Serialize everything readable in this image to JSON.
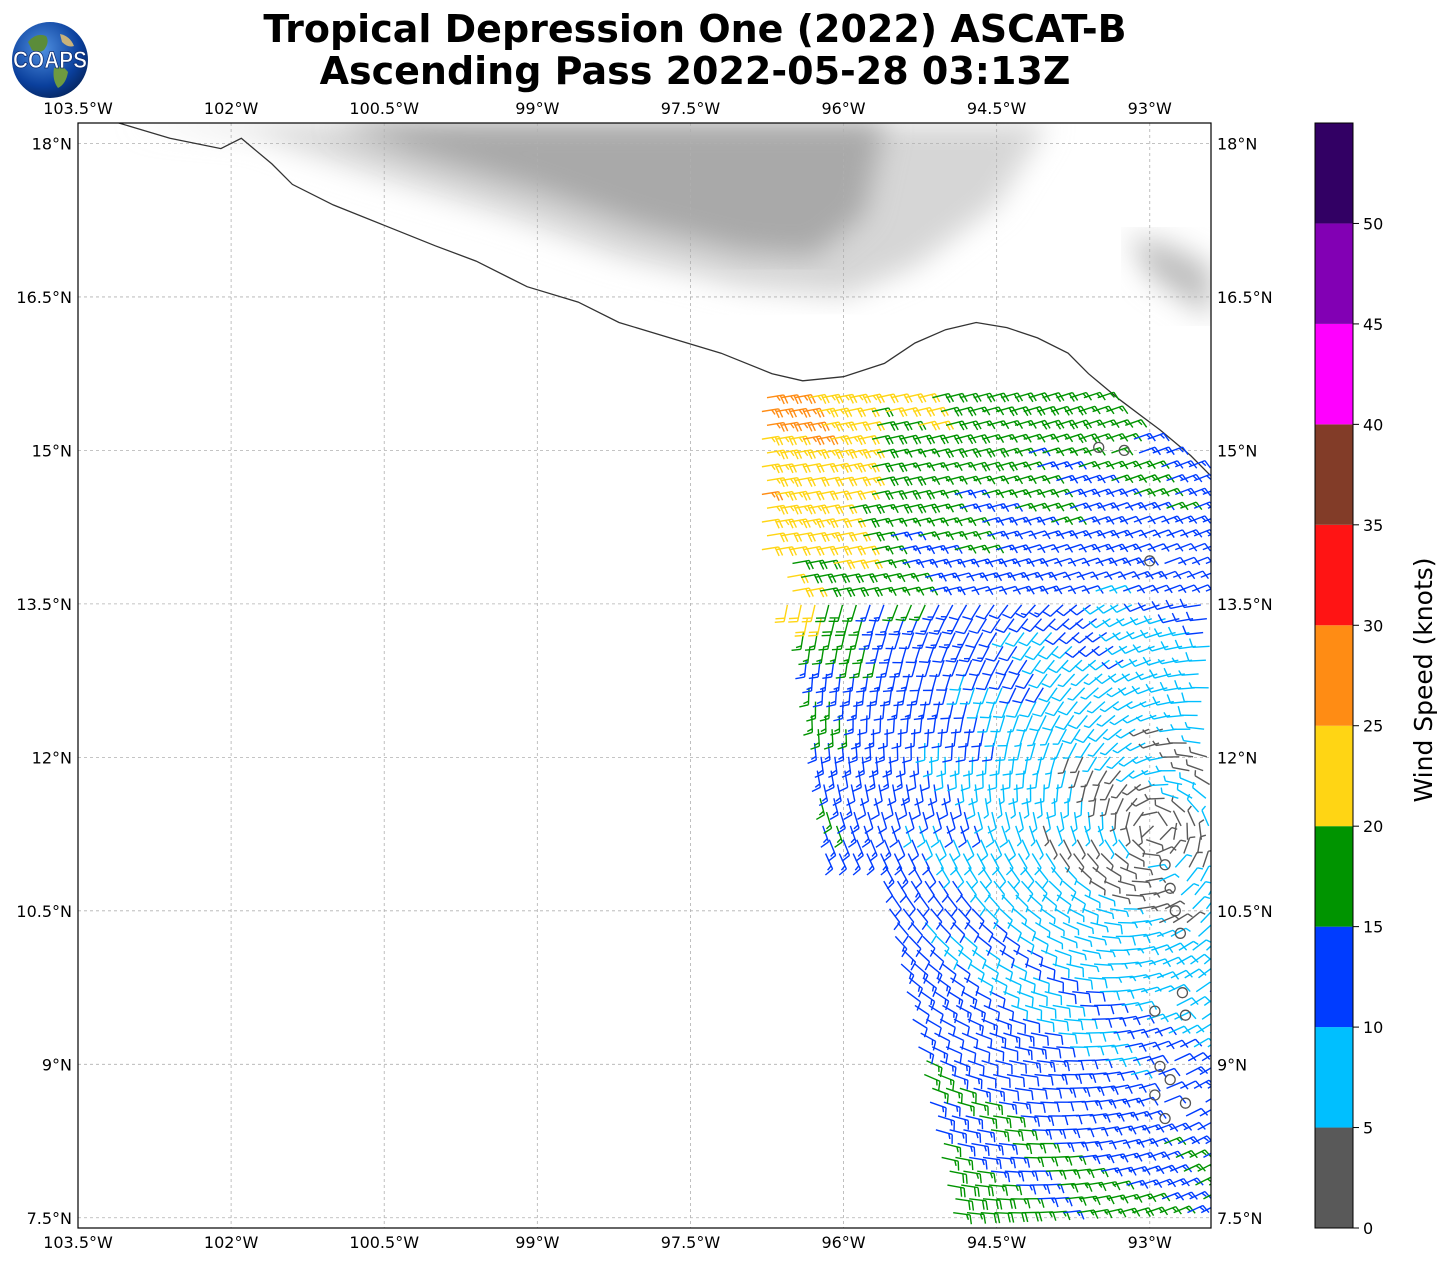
{
  "title_line1": "Tropical Depression One (2022) ASCAT-B",
  "title_line2": "Ascending Pass 2022-05-28 03:13Z",
  "logo_text": "COAPS",
  "map": {
    "lon_range": [
      -103.5,
      -92.4
    ],
    "lat_range": [
      7.4,
      18.2
    ],
    "lon_ticks": [
      {
        "value": -103.5,
        "label": "103.5°W"
      },
      {
        "value": -102,
        "label": "102°W"
      },
      {
        "value": -100.5,
        "label": "100.5°W"
      },
      {
        "value": -99,
        "label": "99°W"
      },
      {
        "value": -97.5,
        "label": "97.5°W"
      },
      {
        "value": -96,
        "label": "96°W"
      },
      {
        "value": -94.5,
        "label": "94.5°W"
      },
      {
        "value": -93,
        "label": "93°W"
      }
    ],
    "lat_ticks": [
      {
        "value": 18,
        "label": "18°N"
      },
      {
        "value": 16.5,
        "label": "16.5°N"
      },
      {
        "value": 15,
        "label": "15°N"
      },
      {
        "value": 13.5,
        "label": "13.5°N"
      },
      {
        "value": 12,
        "label": "12°N"
      },
      {
        "value": 10.5,
        "label": "10.5°N"
      },
      {
        "value": 9,
        "label": "9°N"
      },
      {
        "value": 7.5,
        "label": "7.5°N"
      }
    ],
    "gridlines": true,
    "coastline": [
      [
        -103.1,
        18.2
      ],
      [
        -102.6,
        18.05
      ],
      [
        -102.1,
        17.95
      ],
      [
        -101.9,
        18.05
      ],
      [
        -101.6,
        17.8
      ],
      [
        -101.4,
        17.6
      ],
      [
        -101.0,
        17.4
      ],
      [
        -100.5,
        17.2
      ],
      [
        -100.0,
        17.0
      ],
      [
        -99.6,
        16.85
      ],
      [
        -99.1,
        16.6
      ],
      [
        -98.6,
        16.45
      ],
      [
        -98.2,
        16.25
      ],
      [
        -97.7,
        16.1
      ],
      [
        -97.2,
        15.95
      ],
      [
        -96.7,
        15.75
      ],
      [
        -96.4,
        15.68
      ],
      [
        -96.0,
        15.72
      ],
      [
        -95.6,
        15.85
      ],
      [
        -95.3,
        16.05
      ],
      [
        -95.0,
        16.18
      ],
      [
        -94.7,
        16.25
      ],
      [
        -94.4,
        16.2
      ],
      [
        -94.1,
        16.1
      ],
      [
        -93.8,
        15.95
      ],
      [
        -93.6,
        15.75
      ],
      [
        -93.3,
        15.5
      ],
      [
        -92.9,
        15.2
      ],
      [
        -92.6,
        14.95
      ],
      [
        -92.4,
        14.75
      ]
    ],
    "terrain_bands": [
      [
        [
          -103.0,
          18.2
        ],
        [
          -101.8,
          18.1
        ],
        [
          -100.6,
          17.7
        ],
        [
          -99.3,
          17.3
        ],
        [
          -98.2,
          16.9
        ],
        [
          -97.0,
          16.6
        ],
        [
          -96.0,
          16.5
        ],
        [
          -95.3,
          16.8
        ],
        [
          -94.5,
          17.4
        ],
        [
          -94.0,
          18.2
        ]
      ],
      [
        [
          -101.0,
          18.2
        ],
        [
          -100.2,
          17.9
        ],
        [
          -99.0,
          17.55
        ],
        [
          -98.0,
          17.2
        ],
        [
          -97.0,
          16.95
        ],
        [
          -96.3,
          16.9
        ],
        [
          -95.8,
          17.3
        ],
        [
          -95.6,
          18.2
        ]
      ],
      [
        [
          -93.2,
          17.1
        ],
        [
          -92.8,
          17.0
        ],
        [
          -92.4,
          16.8
        ],
        [
          -92.4,
          16.3
        ],
        [
          -93.0,
          16.7
        ]
      ]
    ]
  },
  "colorbar": {
    "label": "Wind Speed (knots)",
    "levels": [
      0,
      5,
      10,
      15,
      20,
      25,
      30,
      35,
      40,
      45,
      50,
      55
    ],
    "tick_values": [
      0,
      5,
      10,
      15,
      20,
      25,
      30,
      35,
      40,
      45,
      50
    ],
    "colors": [
      "#595959",
      "#00bfff",
      "#003cff",
      "#009400",
      "#ffd514",
      "#ff8c14",
      "#ff1414",
      "#823c28",
      "#ff00ff",
      "#8200b4",
      "#320064"
    ]
  },
  "wind_field": {
    "lon_range": [
      -96.8,
      -92.4
    ],
    "lat_range": [
      7.4,
      15.6
    ],
    "calm_points": [
      [
        -93.5,
        15.03
      ],
      [
        -93.25,
        15.0
      ],
      [
        -93.0,
        13.92
      ],
      [
        -92.85,
        10.95
      ],
      [
        -92.8,
        10.72
      ],
      [
        -92.75,
        10.5
      ],
      [
        -92.7,
        10.28
      ],
      [
        -92.68,
        9.7
      ],
      [
        -92.65,
        9.48
      ],
      [
        -92.95,
        9.52
      ],
      [
        -92.8,
        8.85
      ],
      [
        -92.65,
        8.62
      ],
      [
        -92.85,
        8.47
      ],
      [
        -92.95,
        8.7
      ],
      [
        -92.9,
        8.98
      ]
    ]
  }
}
